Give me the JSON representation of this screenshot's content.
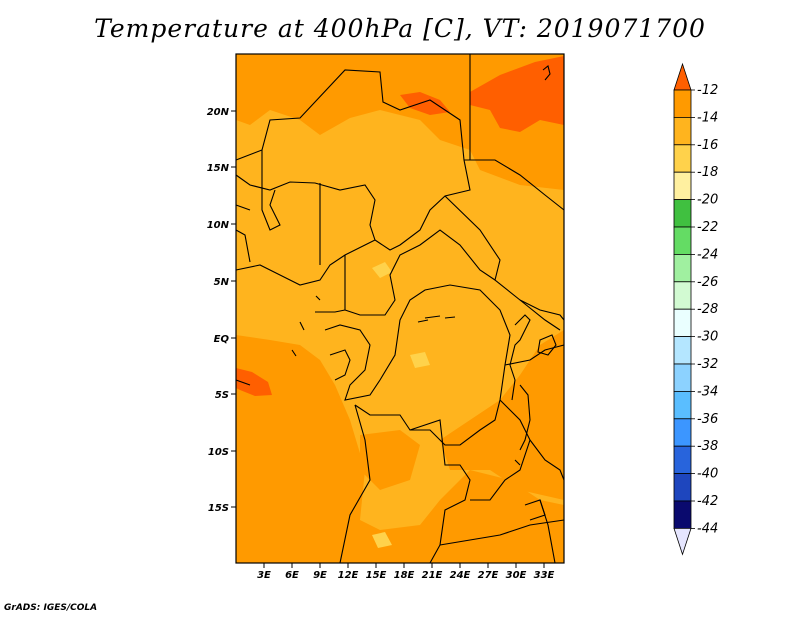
{
  "title": "Temperature at 400hPa [C], VT: 2019071700",
  "credit": "GrADS: IGES/COLA",
  "axes": {
    "lon_ticks": [
      "3E",
      "6E",
      "9E",
      "12E",
      "15E",
      "18E",
      "21E",
      "24E",
      "27E",
      "30E",
      "33E"
    ],
    "lat_ticks": [
      "20N",
      "15N",
      "10N",
      "5N",
      "EQ",
      "5S",
      "10S",
      "15S"
    ]
  },
  "legend": {
    "labels": [
      "-12",
      "-14",
      "-16",
      "-18",
      "-20",
      "-22",
      "-24",
      "-26",
      "-28",
      "-30",
      "-32",
      "-34",
      "-36",
      "-38",
      "-40",
      "-42",
      "-44"
    ],
    "colors": [
      "#ff5f00",
      "#ff9a00",
      "#ffb41e",
      "#ffd24b",
      "#fff0a0",
      "#40c040",
      "#64dc64",
      "#a0f0a0",
      "#d2fad2",
      "#eaffff",
      "#b4e6ff",
      "#8cd2ff",
      "#5abeff",
      "#3c96ff",
      "#2864dc",
      "#1e46be",
      "#0a0a6e",
      "#e6e6ff"
    ]
  },
  "colors": {
    "field_base": "#ffb41e",
    "field_warm": "#ff9a00",
    "field_hot": "#ff5f00",
    "field_cool": "#ffd24b",
    "border": "#000000"
  }
}
